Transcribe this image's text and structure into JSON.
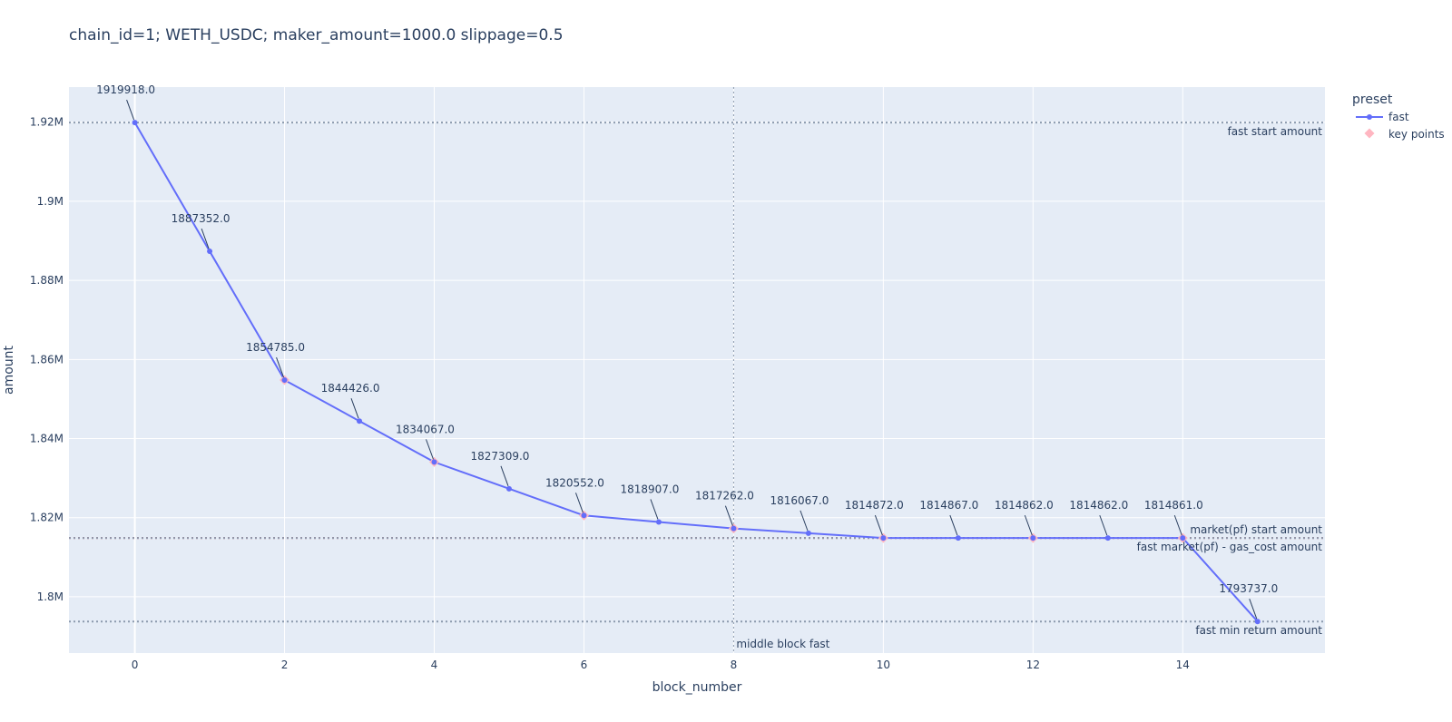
{
  "chart_data": {
    "type": "line",
    "title": "chain_id=1; WETH_USDC; maker_amount=1000.0 slippage=0.5",
    "xlabel": "block_number",
    "ylabel": "amount",
    "xlim": [
      -0.88,
      15.9
    ],
    "ylim": [
      1785760,
      1928880
    ],
    "x_ticks": [
      0,
      2,
      4,
      6,
      8,
      10,
      12,
      14
    ],
    "y_ticks": [
      1800000,
      1820000,
      1840000,
      1860000,
      1880000,
      1900000,
      1920000
    ],
    "y_tick_labels": [
      "1.8M",
      "1.82M",
      "1.84M",
      "1.86M",
      "1.88M",
      "1.9M",
      "1.92M"
    ],
    "grid": true,
    "legend": {
      "title": "preset",
      "placement": "top-right",
      "entries": [
        "fast",
        "key points"
      ]
    },
    "colors": {
      "fast": "#636efa",
      "key_points": "#ffb6c1",
      "plot_background": "#e5ecf6",
      "reference_line": "#8c9aae",
      "market_line": "#d62728"
    },
    "series": [
      {
        "name": "fast",
        "x": [
          0,
          1,
          2,
          3,
          4,
          5,
          6,
          7,
          8,
          9,
          10,
          11,
          12,
          13,
          14,
          15
        ],
        "values": [
          1919918.0,
          1887352.0,
          1854785.0,
          1844426.0,
          1834067.0,
          1827309.0,
          1820552.0,
          1818907.0,
          1817262.0,
          1816067.0,
          1814872.0,
          1814867.0,
          1814862.0,
          1814862.0,
          1814861.0,
          1793737.0
        ],
        "labels": [
          "1919918.0",
          "1887352.0",
          "1854785.0",
          "1844426.0",
          "1834067.0",
          "1827309.0",
          "1820552.0",
          "1818907.0",
          "1817262.0",
          "1816067.0",
          "1814872.0",
          "1814867.0",
          "1814862.0",
          "1814862.0",
          "1814861.0",
          "1793737.0"
        ]
      },
      {
        "name": "key points",
        "x": [
          2,
          4,
          6,
          8,
          10,
          12,
          14
        ],
        "values": [
          1854785.0,
          1834067.0,
          1820552.0,
          1817262.0,
          1814872.0,
          1814862.0,
          1814861.0
        ]
      }
    ],
    "reference_lines": [
      {
        "orientation": "horizontal",
        "value": 1919918.0,
        "label": "fast start amount",
        "label_side": "below",
        "color": "#8c9aae"
      },
      {
        "orientation": "horizontal",
        "value": 1814872.0,
        "label": "market(pf) start amount",
        "label_side": "above",
        "color": "#d62728"
      },
      {
        "orientation": "horizontal",
        "value": 1814861.0,
        "label": "fast market(pf) - gas_cost amount",
        "label_side": "below",
        "color": "#8c9aae"
      },
      {
        "orientation": "horizontal",
        "value": 1793737.0,
        "label": "fast min return amount",
        "label_side": "below",
        "color": "#8c9aae"
      },
      {
        "orientation": "vertical",
        "value": 8,
        "label": "middle block fast",
        "label_side": "bottom",
        "color": "#8c9aae"
      }
    ]
  }
}
